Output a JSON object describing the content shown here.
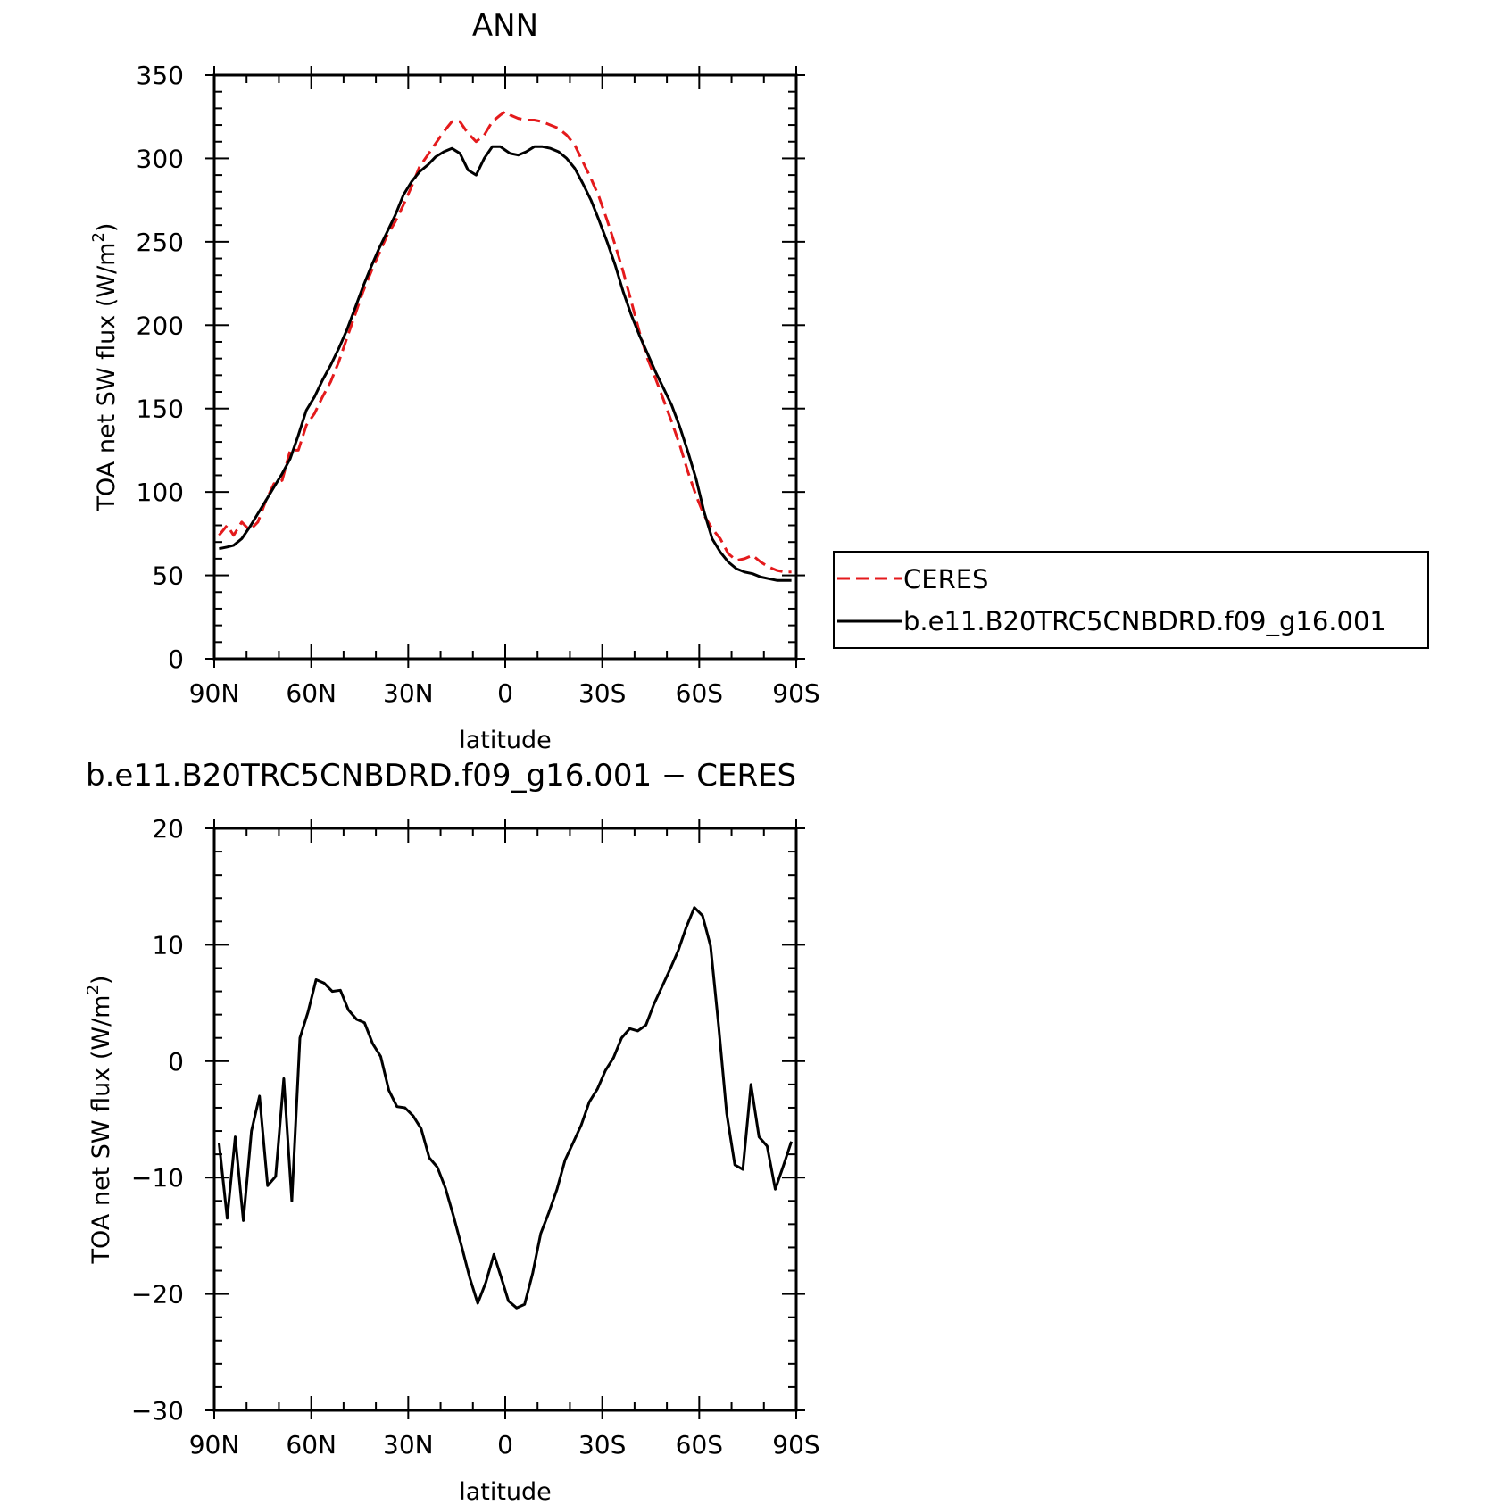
{
  "chart_data": [
    {
      "type": "line",
      "title": "ANN",
      "xlabel": "latitude",
      "ylabel": "TOA net SW flux (W/m",
      "ylabel_sup": "2",
      "ylabel_close": ")",
      "xlim": [
        90,
        -90
      ],
      "ylim": [
        0,
        350
      ],
      "x_ticks": [
        {
          "value": 90,
          "label": "90N"
        },
        {
          "value": 60,
          "label": "60N"
        },
        {
          "value": 30,
          "label": "30N"
        },
        {
          "value": 0,
          "label": "0"
        },
        {
          "value": -30,
          "label": "30S"
        },
        {
          "value": -60,
          "label": "60S"
        },
        {
          "value": -90,
          "label": "90S"
        }
      ],
      "y_ticks": [
        0,
        50,
        100,
        150,
        200,
        250,
        300,
        350
      ],
      "legend": "right",
      "series": [
        {
          "name": "CERES",
          "color": "#e41a1c",
          "dash": "dashed",
          "x": [
            88.5,
            86,
            84,
            81.5,
            79,
            76.5,
            74,
            71.5,
            69,
            66.5,
            64,
            61.5,
            59,
            56.5,
            54,
            51.5,
            49,
            46.5,
            44,
            41.5,
            39,
            36.5,
            34,
            31.5,
            29,
            26.5,
            24,
            21.5,
            19,
            16.5,
            14,
            11.5,
            9,
            6.5,
            4,
            1.5,
            0,
            -1.5,
            -4,
            -6.5,
            -9,
            -11.5,
            -14,
            -16.5,
            -19,
            -21.5,
            -24,
            -26.5,
            -29,
            -31.5,
            -34,
            -36.5,
            -39,
            -41.5,
            -44,
            -46.5,
            -49,
            -51.5,
            -54,
            -56.5,
            -59,
            -61.5,
            -64,
            -66.5,
            -69,
            -71.5,
            -74,
            -76.5,
            -79,
            -81.5,
            -84,
            -86.5,
            -88.5
          ],
          "values": [
            74,
            80,
            74,
            82,
            77,
            82,
            95,
            105,
            107,
            125,
            125,
            140,
            147,
            157,
            166,
            178,
            192,
            206,
            220,
            232,
            243,
            254,
            262,
            272,
            283,
            295,
            302,
            309,
            316,
            322,
            322,
            315,
            310,
            314,
            322,
            326,
            328,
            326,
            324,
            323,
            323,
            322,
            320,
            318,
            314,
            308,
            298,
            288,
            277,
            263,
            248,
            232,
            214,
            196,
            180,
            168,
            155,
            142,
            128,
            112,
            98,
            86,
            78,
            72,
            63,
            59,
            60,
            62,
            58,
            55,
            53,
            52,
            52
          ]
        },
        {
          "name": "b.e11.B20TRC5CNBDRD.f09_g16.001",
          "color": "#000000",
          "dash": "solid",
          "x": [
            88.5,
            86,
            84,
            81.5,
            79,
            76.5,
            74,
            71.5,
            69,
            66.5,
            64,
            61.5,
            59,
            56.5,
            54,
            51.5,
            49,
            46.5,
            44,
            41.5,
            39,
            36.5,
            34,
            31.5,
            29,
            26.5,
            24,
            21.5,
            19,
            16.5,
            14,
            11.5,
            9,
            6.5,
            4,
            1.5,
            0,
            -1.5,
            -4,
            -6.5,
            -9,
            -11.5,
            -14,
            -16.5,
            -19,
            -21.5,
            -24,
            -26.5,
            -29,
            -31.5,
            -34,
            -36.5,
            -39,
            -41.5,
            -44,
            -46.5,
            -49,
            -51.5,
            -54,
            -56.5,
            -59,
            -61.5,
            -64,
            -66.5,
            -69,
            -71.5,
            -74,
            -76.5,
            -79,
            -81.5,
            -84,
            -86.5,
            -88.5
          ],
          "values": [
            66,
            67,
            68,
            72,
            79,
            87,
            95,
            103,
            111,
            120,
            134,
            149,
            157,
            167,
            176,
            186,
            197,
            210,
            223,
            235,
            246,
            256,
            266,
            278,
            286,
            292,
            296,
            301,
            304,
            306,
            303,
            293,
            290,
            300,
            307,
            307,
            305,
            303,
            302,
            304,
            307,
            307,
            306,
            304,
            300,
            294,
            285,
            275,
            263,
            250,
            236,
            220,
            206,
            194,
            183,
            172,
            162,
            152,
            139,
            124,
            108,
            88,
            72,
            64,
            58,
            54,
            52,
            51,
            49,
            48,
            47,
            47,
            47
          ]
        }
      ]
    },
    {
      "type": "line",
      "title": "b.e11.B20TRC5CNBDRD.f09_g16.001 − CERES",
      "xlabel": "latitude",
      "ylabel": "TOA net SW flux (W/m",
      "ylabel_sup": "2",
      "ylabel_close": ")",
      "xlim": [
        90,
        -90
      ],
      "ylim": [
        -30,
        20
      ],
      "x_ticks": [
        {
          "value": 90,
          "label": "90N"
        },
        {
          "value": 60,
          "label": "60N"
        },
        {
          "value": 30,
          "label": "30N"
        },
        {
          "value": 0,
          "label": "0"
        },
        {
          "value": -30,
          "label": "30S"
        },
        {
          "value": -60,
          "label": "60S"
        },
        {
          "value": -90,
          "label": "90S"
        }
      ],
      "y_ticks": [
        {
          "value": 20,
          "label": "20"
        },
        {
          "value": 10,
          "label": "10"
        },
        {
          "value": 0,
          "label": "0"
        },
        {
          "value": -10,
          "label": "−10"
        },
        {
          "value": -20,
          "label": "−20"
        },
        {
          "value": -30,
          "label": "−30"
        }
      ],
      "series": [
        {
          "color": "#000000",
          "dash": "solid",
          "x": [
            88.5,
            86,
            83.5,
            81,
            78.5,
            76,
            73.5,
            71,
            68.5,
            66,
            63.5,
            61,
            58.5,
            56,
            53.5,
            51,
            48.5,
            46,
            43.5,
            41,
            38.5,
            36,
            33.5,
            31,
            28.5,
            26,
            23.5,
            21,
            18.5,
            16,
            13.5,
            11,
            8.5,
            6,
            3.5,
            1,
            -1,
            -3.5,
            -6,
            -8.5,
            -11,
            -13.5,
            -16,
            -18.5,
            -21,
            -23.5,
            -26,
            -28.5,
            -31,
            -33.5,
            -36,
            -38.5,
            -41,
            -43.5,
            -46,
            -48.5,
            -51,
            -53.5,
            -56,
            -58.5,
            -61,
            -63.5,
            -66,
            -68.5,
            -71,
            -73.5,
            -76,
            -78.5,
            -81,
            -83.5,
            -86,
            -88.5
          ],
          "values": [
            -7,
            -13.5,
            -6.5,
            -13.7,
            -6,
            -3,
            -10.7,
            -9.9,
            -1.5,
            -12,
            2,
            4.2,
            7,
            6.7,
            6,
            6.1,
            4.4,
            3.6,
            3.3,
            1.5,
            0.4,
            -2.5,
            -3.9,
            -4,
            -4.7,
            -5.8,
            -8.3,
            -9.1,
            -10.9,
            -13.3,
            -15.9,
            -18.6,
            -20.8,
            -19,
            -16.6,
            -18.8,
            -20.6,
            -21.2,
            -20.9,
            -18.2,
            -14.8,
            -13,
            -11,
            -8.5,
            -7,
            -5.5,
            -3.5,
            -2.4,
            -0.8,
            0.3,
            2,
            2.8,
            2.6,
            3.1,
            4.9,
            6.4,
            7.9,
            9.5,
            11.5,
            13.2,
            12.5,
            9.9,
            3,
            -4.5,
            -8.9,
            -9.3,
            -2,
            -6.5,
            -7.3,
            -11,
            -9,
            -6.9
          ]
        }
      ]
    }
  ]
}
